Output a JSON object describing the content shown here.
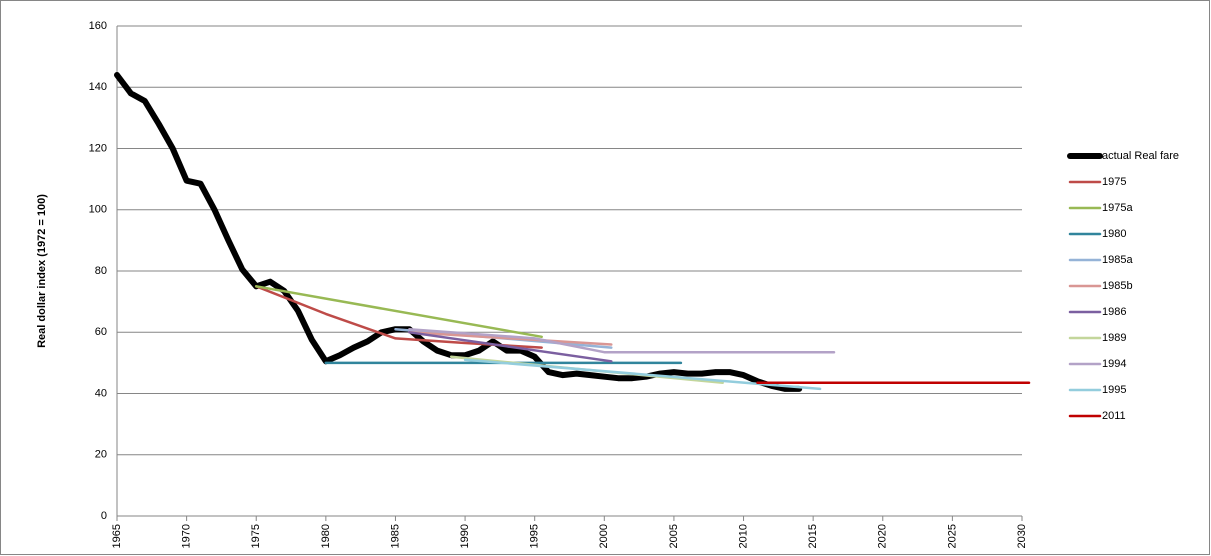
{
  "chart_data": {
    "type": "line",
    "y_label": "Real dollar index (1972 = 100)",
    "xlim": [
      1965,
      2030
    ],
    "xticks": [
      1965,
      1970,
      1975,
      1980,
      1985,
      1990,
      1995,
      2000,
      2005,
      2010,
      2015,
      2020,
      2025,
      2030
    ],
    "ylim": [
      0,
      160
    ],
    "yticks": [
      0,
      20,
      40,
      60,
      80,
      100,
      120,
      140,
      160
    ],
    "grid": true,
    "legend": "right",
    "series": [
      {
        "name": "actual Real fare",
        "color": "#000000",
        "x": [
          1965,
          1966,
          1967,
          1968,
          1969,
          1970,
          1971,
          1972,
          1973,
          1974,
          1975,
          1976,
          1977,
          1978,
          1979,
          1980,
          1981,
          1982,
          1983,
          1984,
          1985,
          1986,
          1987,
          1988,
          1989,
          1990,
          1991,
          1992,
          1993,
          1994,
          1995,
          1996,
          1997,
          1998,
          1999,
          2000,
          2001,
          2002,
          2003,
          2004,
          2005,
          2006,
          2007,
          2008,
          2009,
          2010,
          2011,
          2012,
          2013,
          2014
        ],
        "values": [
          144,
          138,
          135.5,
          128,
          120,
          109.5,
          108.5,
          100,
          90,
          80.5,
          75,
          76.5,
          73.5,
          67,
          57.5,
          50.5,
          52.5,
          55,
          57,
          60,
          61,
          61,
          57,
          54,
          52.5,
          52.5,
          54,
          57,
          54,
          54,
          52,
          47,
          46,
          46.5,
          46,
          45.5,
          45,
          45,
          45.5,
          46.5,
          47,
          46.5,
          46.5,
          47,
          47,
          46,
          44,
          42.5,
          41.5,
          41.5
        ]
      },
      {
        "name": "1975",
        "color": "#be4b48",
        "x": [
          1975,
          1980,
          1985,
          1990,
          1995.5
        ],
        "values": [
          75,
          66,
          58,
          56.5,
          55
        ]
      },
      {
        "name": "1975a",
        "color": "#98b954",
        "x": [
          1975,
          1995.5
        ],
        "values": [
          75,
          58.5
        ]
      },
      {
        "name": "1980",
        "color": "#31859c",
        "x": [
          1980,
          2005.5
        ],
        "values": [
          50,
          50
        ]
      },
      {
        "name": "1985a",
        "color": "#95b3d7",
        "x": [
          1985,
          2000.5
        ],
        "values": [
          61,
          55
        ]
      },
      {
        "name": "1985b",
        "color": "#d99694",
        "x": [
          1986,
          2000.5
        ],
        "values": [
          60,
          56
        ]
      },
      {
        "name": "1986",
        "color": "#7b5fa0",
        "x": [
          1986,
          2000.5
        ],
        "values": [
          60,
          50.5
        ]
      },
      {
        "name": "1989",
        "color": "#c3d69b",
        "x": [
          1989,
          2008.5
        ],
        "values": [
          52,
          43.5
        ]
      },
      {
        "name": "1994",
        "color": "#b3a2c7",
        "x": [
          1986,
          1995,
          2000,
          2016.5
        ],
        "values": [
          61,
          58,
          53.5,
          53.5
        ]
      },
      {
        "name": "1995",
        "color": "#93cddd",
        "x": [
          1990,
          2015.5
        ],
        "values": [
          51,
          41.5
        ]
      },
      {
        "name": "2011",
        "color": "#c00000",
        "x": [
          2011,
          2030.5
        ],
        "values": [
          43.5,
          43.5
        ]
      }
    ]
  }
}
